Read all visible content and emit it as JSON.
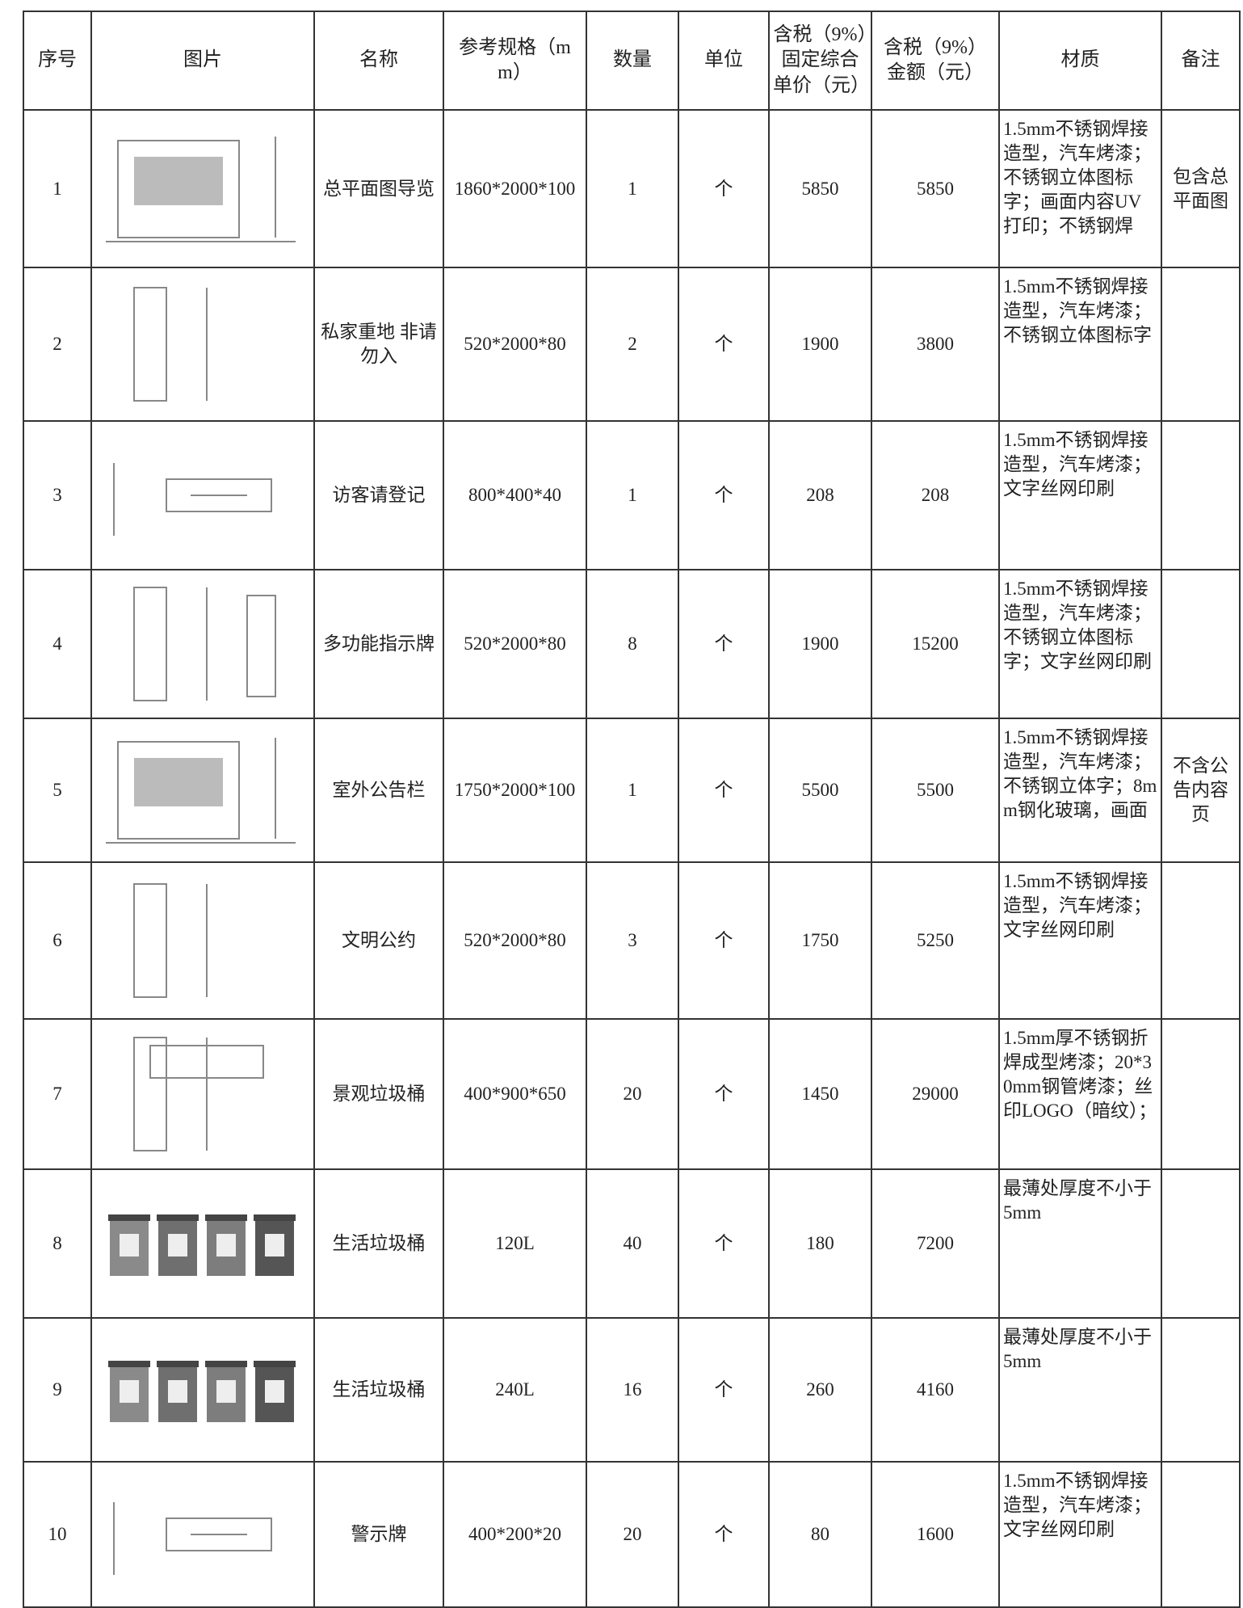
{
  "table": {
    "header": [
      "序号",
      "图片",
      "名称",
      "参考规格（mm）",
      "数量",
      "单位",
      "含税（9%）固定综合单价（元）",
      "含税（9%）金额（元）",
      "材质",
      "备注"
    ],
    "rows": [
      {
        "no": 1,
        "name": "总平面图导览",
        "spec": "1860*2000*100",
        "qty": 1,
        "unit": "个",
        "price": 5850,
        "amount": 5850,
        "material": "1.5mm不锈钢焊接造型，汽车烤漆；不锈钢立体图标字；画面内容UV打印；不锈钢焊",
        "remark": "包含总平面图"
      },
      {
        "no": 2,
        "name": "私家重地 非请勿入",
        "spec": "520*2000*80",
        "qty": 2,
        "unit": "个",
        "price": 1900,
        "amount": 3800,
        "material": "1.5mm不锈钢焊接造型，汽车烤漆；不锈钢立体图标字"
      },
      {
        "no": 3,
        "name": "访客请登记",
        "spec": "800*400*40",
        "qty": 1,
        "unit": "个",
        "price": 208,
        "amount": 208,
        "material": "1.5mm不锈钢焊接造型，汽车烤漆；文字丝网印刷"
      },
      {
        "no": 4,
        "name": "多功能指示牌",
        "spec": "520*2000*80",
        "qty": 8,
        "unit": "个",
        "price": 1900,
        "amount": 15200,
        "material": "1.5mm不锈钢焊接造型，汽车烤漆；不锈钢立体图标字；文字丝网印刷"
      },
      {
        "no": 5,
        "name": "室外公告栏",
        "spec": "1750*2000*100",
        "qty": 1,
        "unit": "个",
        "price": 5500,
        "amount": 5500,
        "material": "1.5mm不锈钢焊接造型，汽车烤漆；不锈钢立体字；8mm钢化玻璃，画面",
        "remark": "不含公告内容页"
      },
      {
        "no": 6,
        "name": "文明公约",
        "spec": "520*2000*80",
        "qty": 3,
        "unit": "个",
        "price": 1750,
        "amount": 5250,
        "material": "1.5mm不锈钢焊接造型，汽车烤漆；文字丝网印刷"
      },
      {
        "no": 7,
        "name": "景观垃圾桶",
        "spec": "400*900*650",
        "qty": 20,
        "unit": "个",
        "price": 1450,
        "amount": 29000,
        "material": "1.5mm厚不锈钢折焊成型烤漆；20*30mm钢管烤漆；丝印LOGO（暗纹）；"
      },
      {
        "no": 8,
        "name": "生活垃圾桶",
        "spec": "120L",
        "qty": 40,
        "unit": "个",
        "price": 180,
        "amount": 7200,
        "material": "最薄处厚度不小于5mm"
      },
      {
        "no": 9,
        "name": "生活垃圾桶",
        "spec": "240L",
        "qty": 16,
        "unit": "个",
        "price": 260,
        "amount": 4160,
        "material": "最薄处厚度不小于5mm"
      },
      {
        "no": 10,
        "name": "警示牌",
        "spec": "400*200*20",
        "qty": 20,
        "unit": "个",
        "price": 80,
        "amount": 1600,
        "material": "1.5mm不锈钢焊接造型，汽车烤漆；文字丝网印刷"
      }
    ]
  }
}
